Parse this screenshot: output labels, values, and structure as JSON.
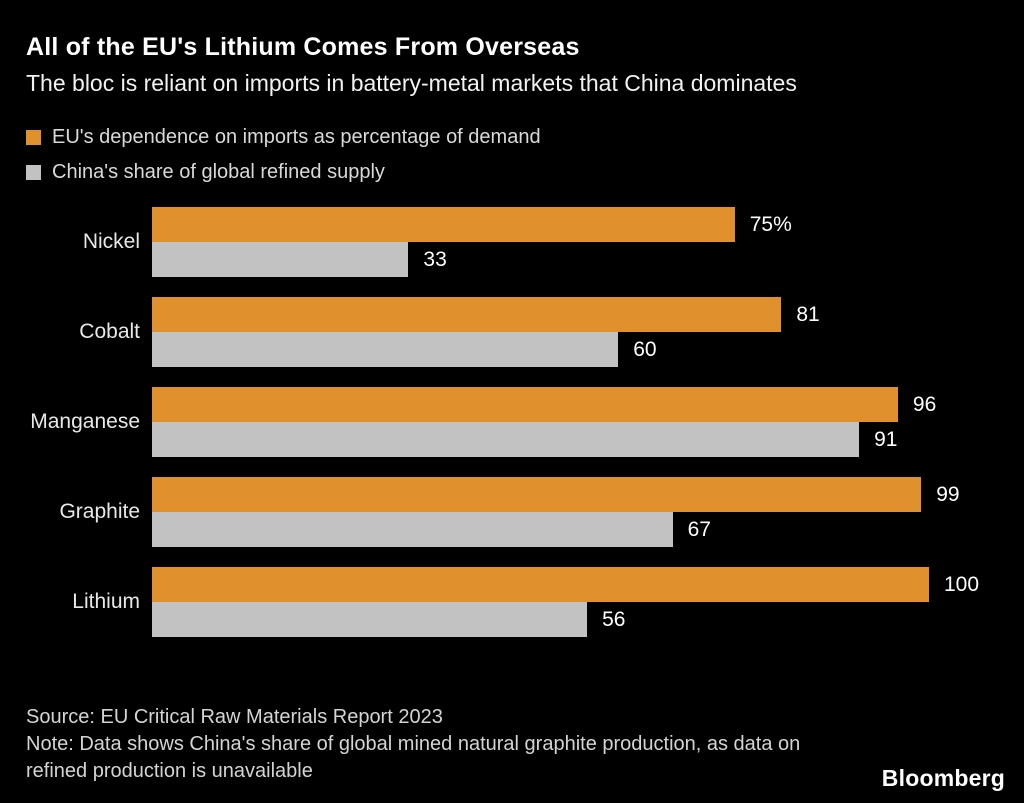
{
  "header": {
    "title": "All of the EU's Lithium Comes From Overseas",
    "subtitle": "The bloc is reliant on imports in battery-metal markets that China dominates"
  },
  "legend": [
    {
      "label": "EU's dependence on imports as percentage of demand",
      "color": "#e0912d"
    },
    {
      "label": "China's share of global refined supply",
      "color": "#c2c2c2"
    }
  ],
  "chart_data": {
    "type": "bar",
    "orientation": "horizontal",
    "title": "All of the EU's Lithium Comes From Overseas",
    "subtitle": "The bloc is reliant on imports in battery-metal markets that China dominates",
    "categories": [
      "Nickel",
      "Cobalt",
      "Manganese",
      "Graphite",
      "Lithium"
    ],
    "series": [
      {
        "name": "EU's dependence on imports as percentage of demand",
        "color": "#e0912d",
        "values": [
          75,
          81,
          96,
          99,
          100
        ],
        "labels": [
          "75%",
          "81",
          "96",
          "99",
          "100"
        ]
      },
      {
        "name": "China's share of global refined supply",
        "color": "#c2c2c2",
        "values": [
          33,
          60,
          91,
          67,
          56
        ],
        "labels": [
          "33",
          "60",
          "91",
          "67",
          "56"
        ]
      }
    ],
    "xlabel": "",
    "ylabel": "",
    "xlim": [
      0,
      100
    ],
    "grid": false,
    "legend_position": "top",
    "value_labels": "outside-end",
    "background": "#000000"
  },
  "footer": {
    "source": "Source: EU Critical Raw Materials Report 2023",
    "note": "Note: Data shows China's share of global mined natural graphite production, as data on refined production is unavailable"
  },
  "branding": {
    "logo": "Bloomberg"
  }
}
